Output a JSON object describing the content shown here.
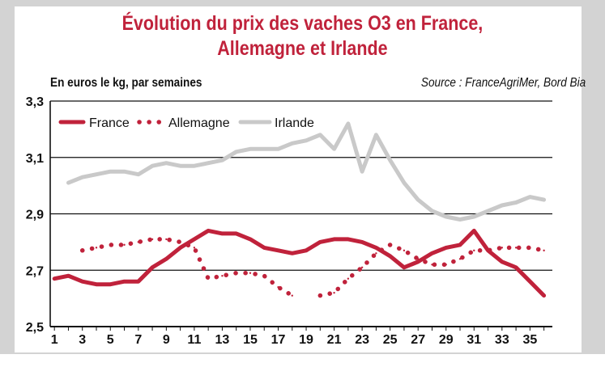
{
  "title_lines": [
    "Évolution du prix des vaches O3 en France,",
    "Allemagne et Irlande"
  ],
  "unit_note": "En euros le kg, par semaines",
  "source_note": "Source : FranceAgriMer, Bord Bia",
  "colors": {
    "title": "#c0223b",
    "france": "#c0223b",
    "allemagne": "#c0223b",
    "irlande": "#c9c9c9"
  },
  "chart_data": {
    "type": "line",
    "x": [
      1,
      2,
      3,
      4,
      5,
      6,
      7,
      8,
      9,
      10,
      11,
      12,
      13,
      14,
      15,
      16,
      17,
      18,
      19,
      20,
      21,
      22,
      23,
      24,
      25,
      26,
      27,
      28,
      29,
      30,
      31,
      32,
      33,
      34,
      35,
      36
    ],
    "x_tick_labels": [
      "1",
      "3",
      "5",
      "7",
      "9",
      "11",
      "13",
      "15",
      "17",
      "19",
      "21",
      "23",
      "25",
      "27",
      "29",
      "31",
      "33",
      "35"
    ],
    "y_tick_labels": [
      "2,5",
      "2,7",
      "2,9",
      "3,1",
      "3,3"
    ],
    "ylim": [
      2.5,
      3.3
    ],
    "grid": "horizontal",
    "legend_position": "top-left",
    "series": [
      {
        "name": "France",
        "style": "solid",
        "values": [
          2.67,
          2.68,
          2.66,
          2.65,
          2.65,
          2.66,
          2.66,
          2.71,
          2.74,
          2.78,
          2.81,
          2.84,
          2.83,
          2.83,
          2.81,
          2.78,
          2.77,
          2.76,
          2.77,
          2.8,
          2.81,
          2.81,
          2.8,
          2.78,
          2.75,
          2.71,
          2.73,
          2.76,
          2.78,
          2.79,
          2.84,
          2.77,
          2.73,
          2.71,
          2.66,
          2.61
        ]
      },
      {
        "name": "Allemagne",
        "style": "dotted",
        "values": [
          null,
          null,
          2.77,
          2.78,
          2.79,
          2.79,
          2.8,
          2.81,
          2.81,
          2.8,
          2.78,
          2.67,
          2.68,
          2.69,
          2.69,
          2.68,
          2.64,
          2.61,
          null,
          2.61,
          2.62,
          2.67,
          2.71,
          2.76,
          2.79,
          2.77,
          2.74,
          2.72,
          2.72,
          2.74,
          2.77,
          2.77,
          2.78,
          2.78,
          2.78,
          2.77
        ]
      },
      {
        "name": "Irlande",
        "style": "solid",
        "values": [
          null,
          3.01,
          3.03,
          3.04,
          3.05,
          3.05,
          3.04,
          3.07,
          3.08,
          3.07,
          3.07,
          3.08,
          3.09,
          3.12,
          3.13,
          3.13,
          3.13,
          3.15,
          3.16,
          3.18,
          3.13,
          3.22,
          3.05,
          3.18,
          3.09,
          3.01,
          2.95,
          2.91,
          2.89,
          2.88,
          2.89,
          2.91,
          2.93,
          2.94,
          2.96,
          2.95
        ]
      }
    ]
  }
}
